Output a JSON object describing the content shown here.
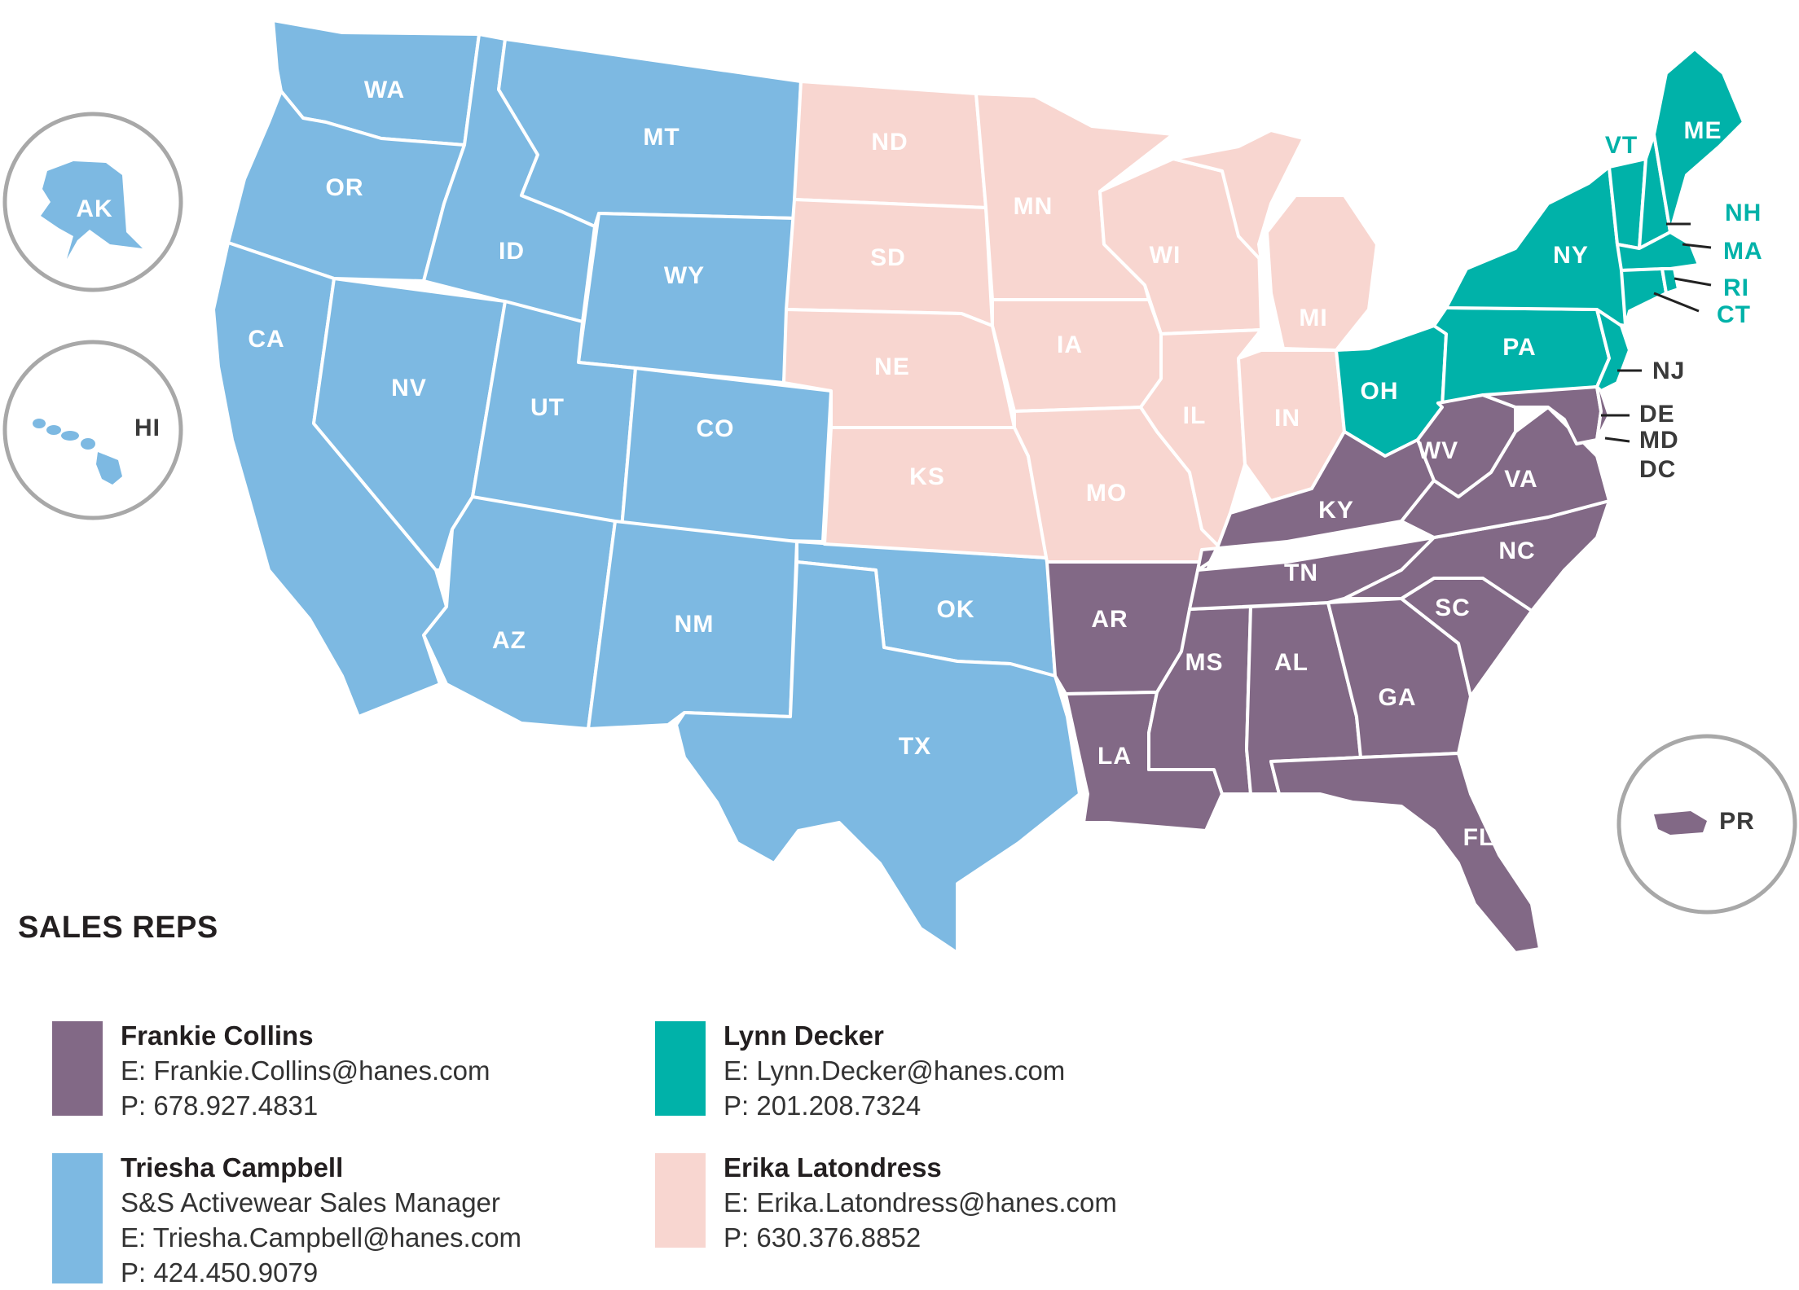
{
  "colors": {
    "frankie": "#826986",
    "triesha": "#7db9e2",
    "lynn": "#00b2a9",
    "erika": "#f8d6d0",
    "inset_outline": "#a8a8a8",
    "state_border": "#ffffff"
  },
  "regions": {
    "west": {
      "rep": "Triesha Campbell",
      "states": [
        "WA",
        "OR",
        "CA",
        "ID",
        "NV",
        "MT",
        "WY",
        "UT",
        "AZ",
        "CO",
        "NM",
        "TX",
        "OK",
        "AK",
        "HI"
      ]
    },
    "midwest": {
      "rep": "Erika Latondress",
      "states": [
        "ND",
        "SD",
        "NE",
        "KS",
        "MN",
        "IA",
        "MO",
        "WI",
        "IL",
        "MI",
        "IN"
      ]
    },
    "northeast": {
      "rep": "Lynn Decker",
      "states": [
        "OH",
        "PA",
        "NY",
        "VT",
        "ME",
        "NH",
        "MA",
        "RI",
        "CT",
        "NJ"
      ]
    },
    "southeast": {
      "rep": "Frankie Collins",
      "states": [
        "AR",
        "LA",
        "MS",
        "AL",
        "TN",
        "KY",
        "GA",
        "FL",
        "SC",
        "NC",
        "VA",
        "WV",
        "DE",
        "MD",
        "DC",
        "PR"
      ]
    }
  },
  "labels": {
    "WA": "WA",
    "OR": "OR",
    "CA": "CA",
    "ID": "ID",
    "NV": "NV",
    "MT": "MT",
    "WY": "WY",
    "UT": "UT",
    "AZ": "AZ",
    "CO": "CO",
    "NM": "NM",
    "TX": "TX",
    "OK": "OK",
    "ND": "ND",
    "SD": "SD",
    "NE": "NE",
    "KS": "KS",
    "MN": "MN",
    "IA": "IA",
    "MO": "MO",
    "WI": "WI",
    "IL": "IL",
    "MI": "MI",
    "IN": "IN",
    "OH": "OH",
    "PA": "PA",
    "NY": "NY",
    "VT": "VT",
    "ME": "ME",
    "NH": "NH",
    "MA": "MA",
    "RI": "RI",
    "CT": "CT",
    "NJ": "NJ",
    "DE": "DE",
    "MD": "MD",
    "DC": "DC",
    "AR": "AR",
    "LA": "LA",
    "MS": "MS",
    "AL": "AL",
    "TN": "TN",
    "KY": "KY",
    "GA": "GA",
    "FL": "FL",
    "SC": "SC",
    "NC": "NC",
    "VA": "VA",
    "WV": "WV",
    "AK": "AK",
    "HI": "HI",
    "PR": "PR"
  },
  "legend": {
    "title": "SALES REPS",
    "reps": [
      {
        "key": "frankie",
        "name": "Frankie Collins",
        "lines": [
          "E: Frankie.Collins@hanes.com",
          "P: 678.927.4831"
        ]
      },
      {
        "key": "lynn",
        "name": "Lynn Decker",
        "lines": [
          "E: Lynn.Decker@hanes.com",
          "P: 201.208.7324"
        ]
      },
      {
        "key": "triesha",
        "name": "Triesha Campbell",
        "lines": [
          "S&S Activewear Sales Manager",
          "E: Triesha.Campbell@hanes.com",
          "P: 424.450.9079"
        ]
      },
      {
        "key": "erika",
        "name": "Erika Latondress",
        "lines": [
          "E: Erika.Latondress@hanes.com",
          "P: 630.376.8852"
        ]
      }
    ]
  }
}
